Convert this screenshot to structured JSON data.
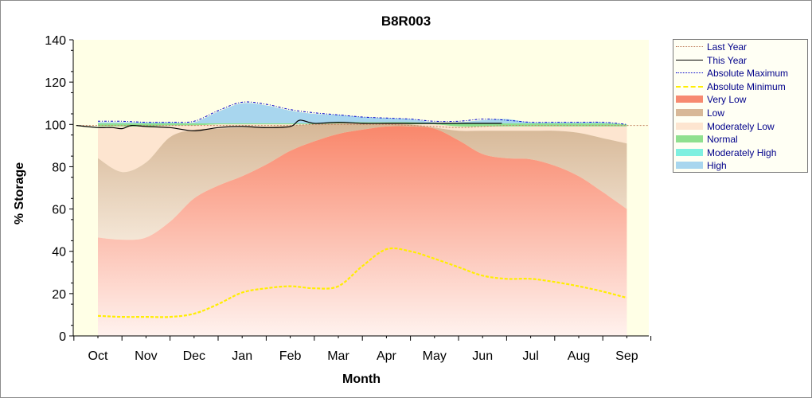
{
  "chart_data": {
    "type": "area",
    "title": "B8R003",
    "xlabel": "Month",
    "ylabel": "% Storage",
    "ylim": [
      0,
      140
    ],
    "y_ticks": [
      "0",
      "20",
      "40",
      "60",
      "80",
      "100",
      "120",
      "140"
    ],
    "categories": [
      "Oct",
      "Nov",
      "Dec",
      "Jan",
      "Feb",
      "Mar",
      "Apr",
      "May",
      "Jun",
      "Jul",
      "Aug",
      "Sep"
    ],
    "grid": false,
    "legend_position": "right",
    "colors": {
      "plot_bg": "#ffffe6",
      "very_low": "#f78a70",
      "low": "#d8b898",
      "moderately_low": "#fde5d0",
      "normal": "#8fe08f",
      "moderately_high": "#7ff0e0",
      "high": "#a8d6ee",
      "this_year": "#000000",
      "last_year": "#c08060",
      "abs_max": "#0000cc",
      "abs_min": "#ffee00"
    },
    "bands": {
      "x": [
        0,
        0.5,
        1,
        1.5,
        2,
        2.5,
        3,
        3.5,
        4,
        4.5,
        5,
        5.5,
        6,
        6.5,
        7,
        7.5,
        8,
        8.5,
        9,
        9.5,
        10,
        10.5,
        11
      ],
      "very_low_top": [
        46.5,
        45.5,
        46.5,
        54,
        65,
        71,
        75.5,
        81,
        87.5,
        92,
        95.5,
        97.5,
        99,
        99,
        98,
        92.5,
        86,
        84,
        83.5,
        80.5,
        75.5,
        68,
        60
      ],
      "low_top": [
        84,
        77.5,
        82,
        94,
        97.5,
        98,
        98.5,
        99,
        99.5,
        100,
        100.5,
        100.5,
        100.5,
        100,
        98.5,
        97,
        97,
        97,
        97,
        97,
        96,
        93.5,
        91
      ],
      "moderately_low_top": [
        99,
        99,
        99,
        99.5,
        99.5,
        100,
        100,
        100,
        100,
        100,
        100,
        100,
        100,
        100,
        100,
        99,
        99,
        99,
        99,
        99,
        99,
        99,
        99
      ],
      "normal_top": [
        100.5,
        100.5,
        100.5,
        100.5,
        100.5,
        100.5,
        100.5,
        100.5,
        100.5,
        100.5,
        101,
        101,
        101,
        101,
        100.5,
        100.5,
        100.5,
        100.5,
        100.5,
        100.5,
        100.5,
        100.5,
        100
      ],
      "high_top": [
        101,
        101,
        101,
        101,
        101,
        106,
        110,
        109,
        106.5,
        105,
        104.5,
        103.5,
        103,
        102.5,
        101,
        101,
        102,
        102.5,
        101,
        101,
        101,
        101,
        100
      ]
    },
    "series": [
      {
        "name": "Last Year",
        "x": [
          -0.45,
          0,
          0.5,
          1,
          1.5,
          2,
          2.5,
          3,
          3.5,
          4,
          4.5,
          5,
          5.5,
          6,
          6.5,
          7,
          7.5,
          8,
          8.5,
          9,
          9.5,
          10,
          10.5,
          11,
          11.45
        ],
        "values": [
          99.5,
          99.5,
          99.5,
          99.5,
          99.5,
          99.5,
          99.5,
          99.5,
          99.5,
          99.5,
          100,
          100,
          100,
          100,
          99.5,
          99,
          98.5,
          99,
          99.5,
          99.5,
          99.5,
          99.5,
          99.5,
          99.5,
          99.5
        ]
      },
      {
        "name": "This Year",
        "x": [
          -0.45,
          0,
          0.3,
          0.5,
          0.7,
          1,
          1.5,
          2,
          2.5,
          3,
          3.5,
          4,
          4.2,
          4.5,
          5,
          5.5,
          6,
          6.5,
          7,
          7.5,
          8,
          8.4
        ],
        "values": [
          99.5,
          98.5,
          98.5,
          98,
          99.5,
          99,
          98.5,
          97,
          98.5,
          99,
          98.5,
          99,
          102,
          100.5,
          101,
          100.5,
          100.5,
          100.5,
          100.5,
          100.5,
          100.5,
          100.5
        ]
      },
      {
        "name": "Absolute Maximum",
        "x": [
          0,
          0.5,
          1,
          1.5,
          2,
          2.5,
          3,
          3.5,
          4,
          4.5,
          5,
          5.5,
          6,
          6.5,
          7,
          7.5,
          8,
          8.5,
          9,
          9.5,
          10,
          10.5,
          11
        ],
        "values": [
          101.5,
          101.5,
          101,
          101,
          101.5,
          106.5,
          110.5,
          109.5,
          107,
          105.5,
          104.5,
          103.5,
          103,
          102.5,
          101.5,
          101.5,
          102.5,
          102,
          101,
          101,
          101,
          101,
          100
        ]
      },
      {
        "name": "Absolute Minimum",
        "x": [
          0,
          0.5,
          1,
          1.5,
          2,
          2.5,
          3,
          3.5,
          4,
          4.5,
          5,
          5.5,
          6,
          6.5,
          7,
          7.5,
          8,
          8.5,
          9,
          9.5,
          10,
          10.5,
          11
        ],
        "values": [
          9.5,
          9,
          9,
          9,
          10.5,
          15,
          20.5,
          22.5,
          23.5,
          22.5,
          23.5,
          33,
          41,
          40,
          36.5,
          32.5,
          28.5,
          27,
          27,
          25.5,
          23.5,
          21,
          18
        ]
      }
    ],
    "legend": [
      "Last Year",
      "This Year",
      "Absolute Maximum",
      "Absolute Minimum",
      "Very Low",
      "Low",
      "Moderately Low",
      "Normal",
      "Moderately High",
      "High"
    ]
  }
}
